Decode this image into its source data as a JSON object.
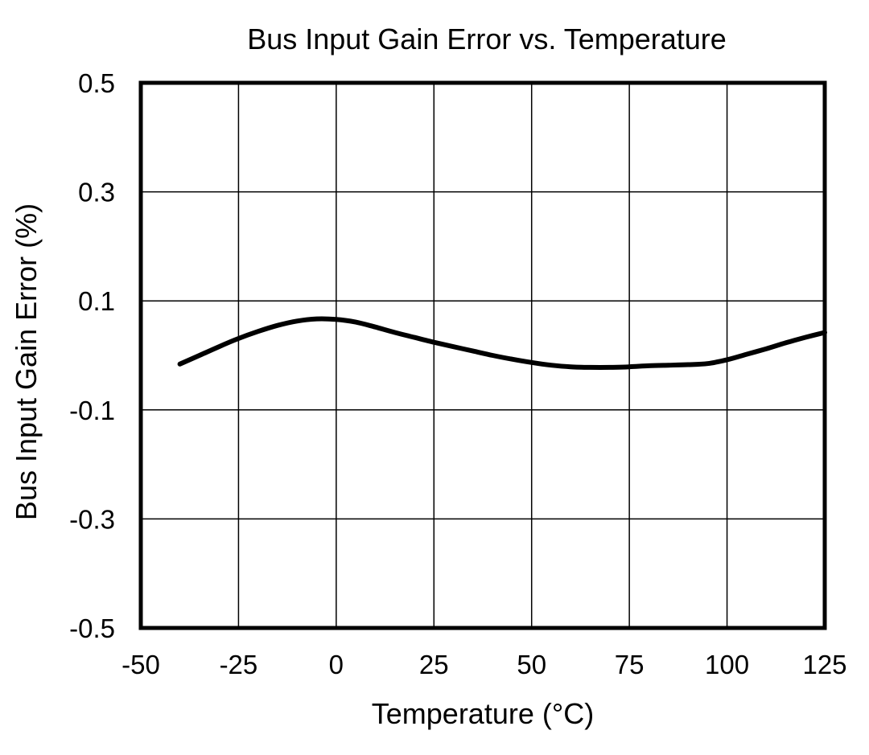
{
  "chart_data": {
    "type": "line",
    "title": "Bus Input Gain Error vs. Temperature",
    "xlabel": "Temperature (°C)",
    "ylabel": "Bus Input Gain Error (%)",
    "xlim": [
      -50,
      125
    ],
    "ylim": [
      -0.5,
      0.5
    ],
    "xticks": [
      -50,
      -25,
      0,
      25,
      50,
      75,
      100,
      125
    ],
    "yticks": [
      -0.5,
      -0.3,
      -0.1,
      0.1,
      0.3,
      0.5
    ],
    "xtick_labels": [
      "-50",
      "-25",
      "0",
      "25",
      "50",
      "75",
      "100",
      "125"
    ],
    "ytick_labels": [
      "-0.5",
      "-0.3",
      "-0.1",
      "0.1",
      "0.3",
      "0.5"
    ],
    "grid": true,
    "line_color": "#000000",
    "series": [
      {
        "x": [
          -40,
          -35,
          -30,
          -25,
          -20,
          -15,
          -10,
          -5,
          0,
          5,
          10,
          15,
          20,
          25,
          30,
          35,
          40,
          45,
          50,
          55,
          60,
          65,
          70,
          75,
          80,
          85,
          90,
          95,
          100,
          105,
          110,
          115,
          120,
          125
        ],
        "y": [
          -0.016,
          0.0,
          0.016,
          0.031,
          0.044,
          0.055,
          0.063,
          0.067,
          0.066,
          0.061,
          0.052,
          0.042,
          0.033,
          0.024,
          0.016,
          0.008,
          0.0,
          -0.007,
          -0.013,
          -0.018,
          -0.021,
          -0.022,
          -0.022,
          -0.021,
          -0.019,
          -0.018,
          -0.017,
          -0.015,
          -0.008,
          0.002,
          0.012,
          0.023,
          0.033,
          0.042
        ]
      }
    ]
  }
}
